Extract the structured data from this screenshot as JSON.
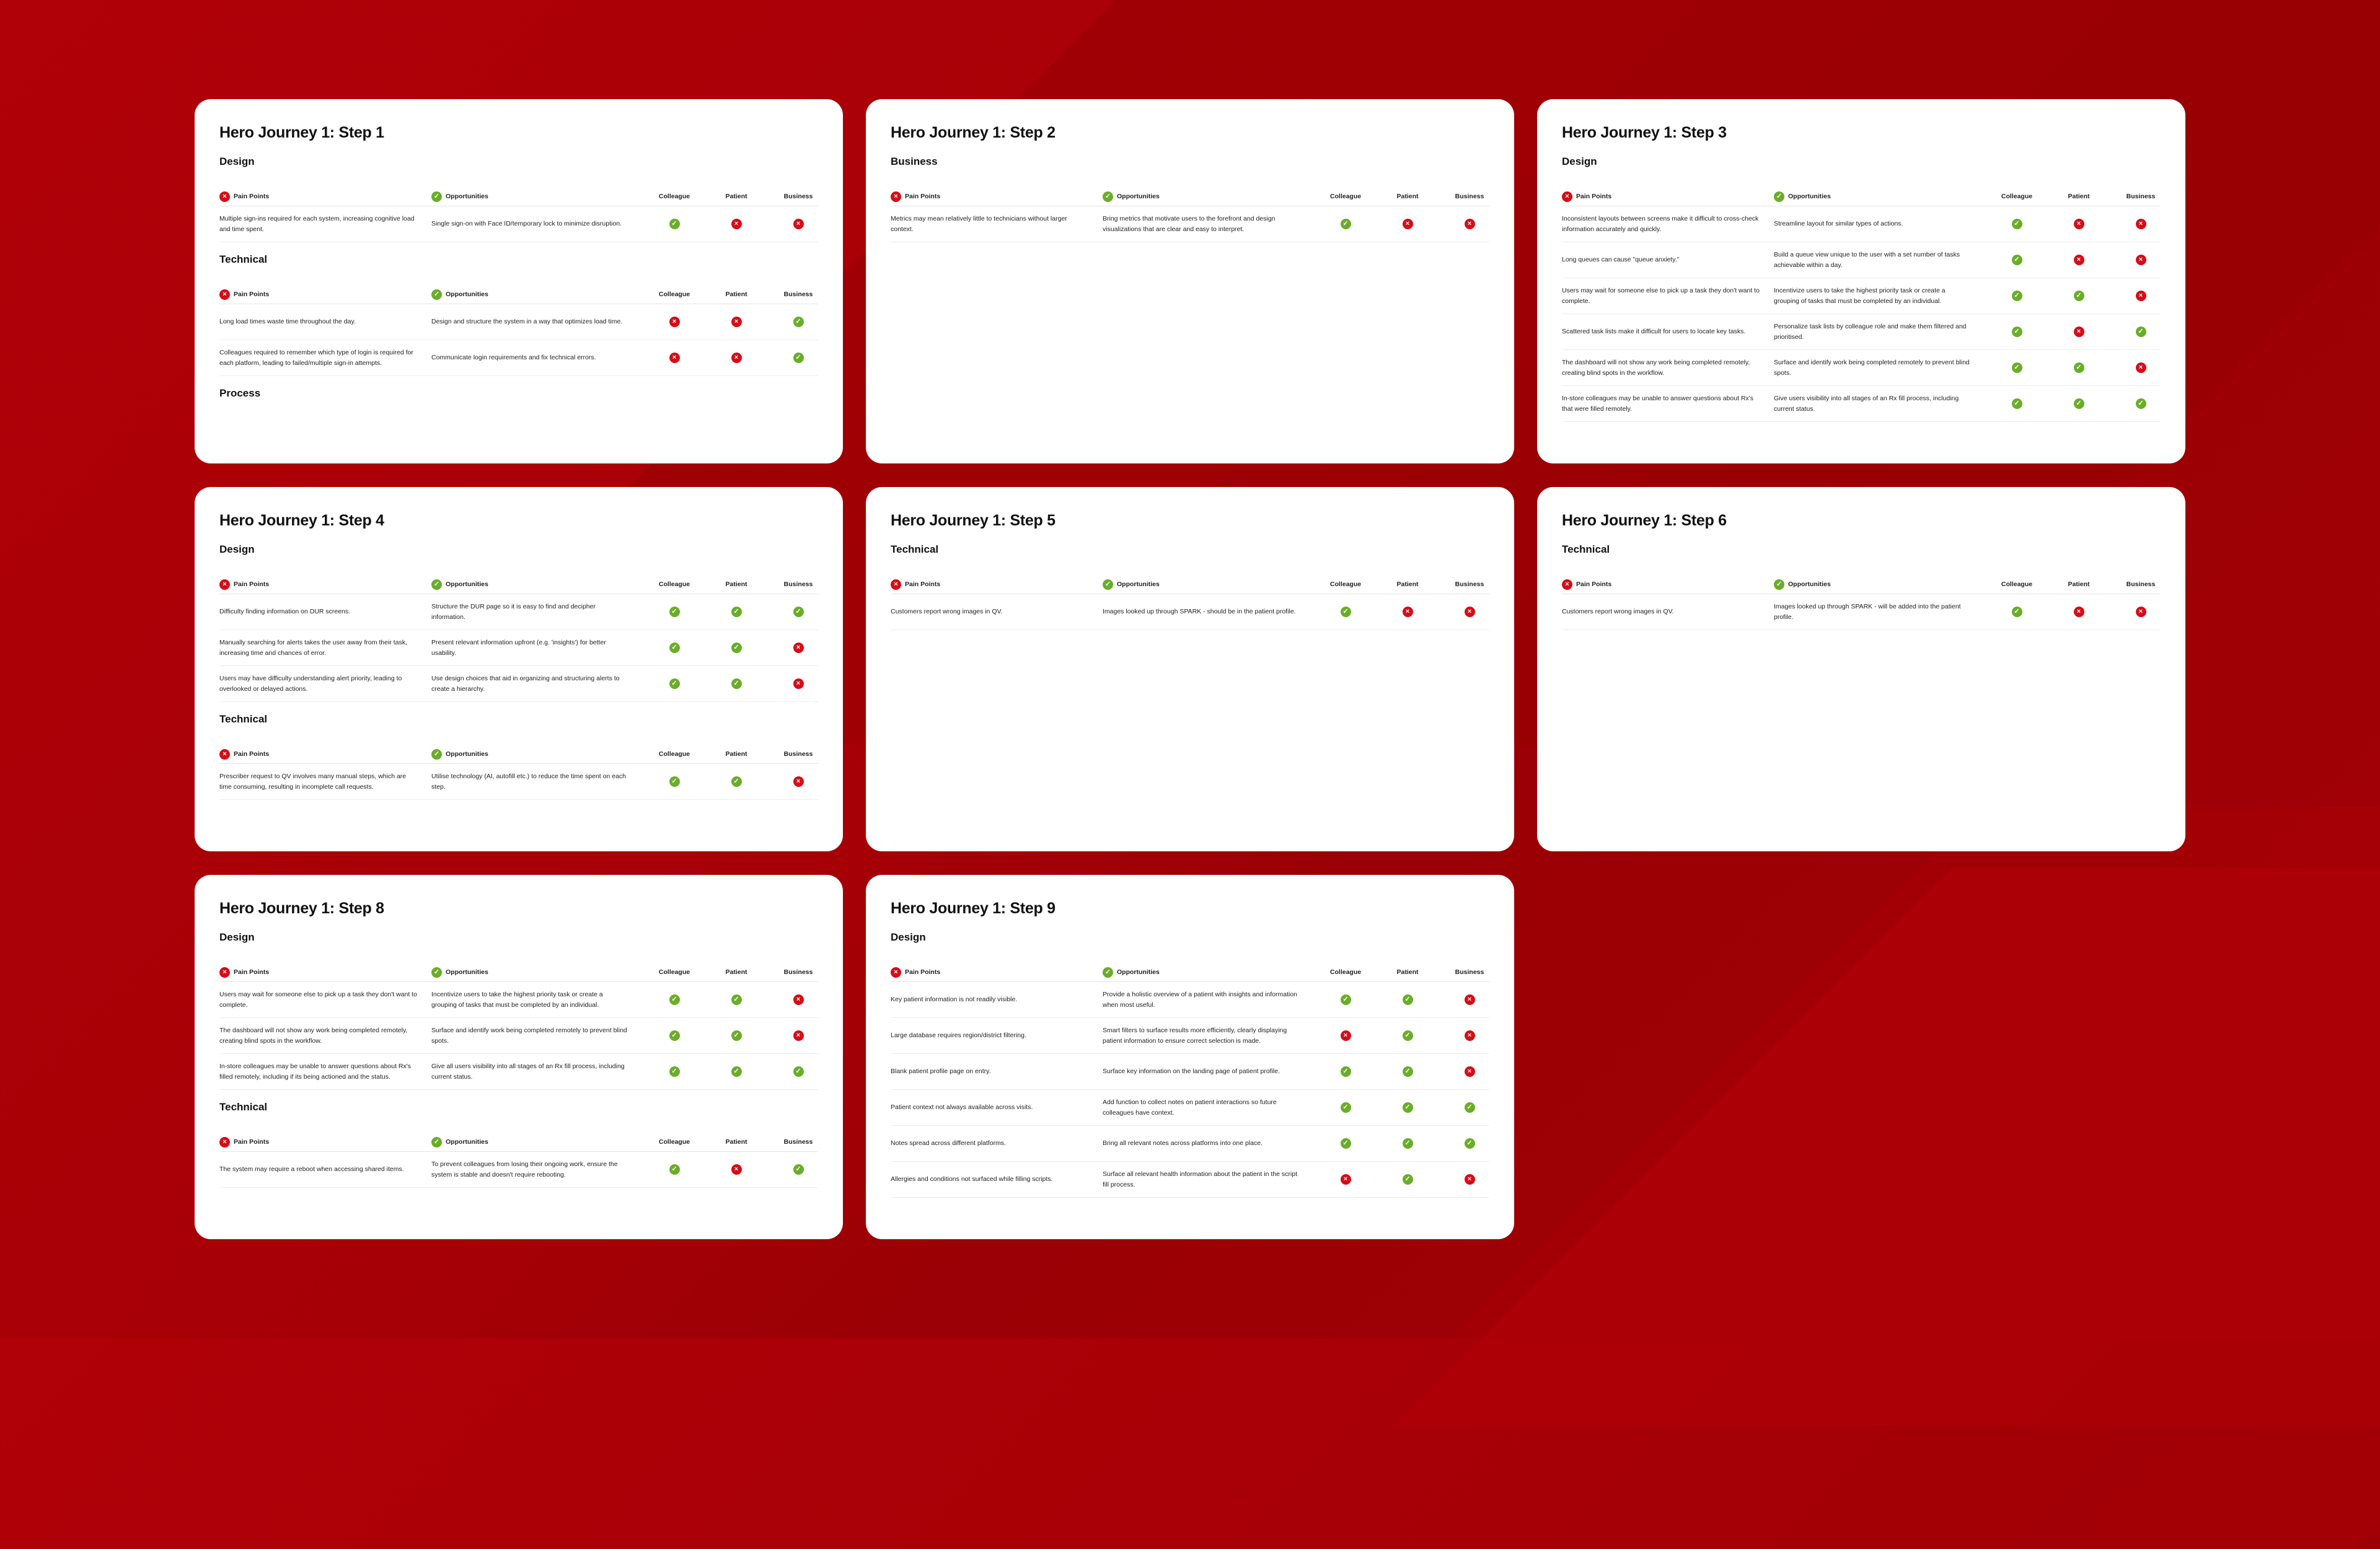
{
  "headers": {
    "pain": "Pain Points",
    "opp": "Opportunities",
    "colleague": "Colleague",
    "patient": "Patient",
    "business": "Business"
  },
  "icons": {
    "pain": "x-circle-icon",
    "opp": "check-circle-icon",
    "yes": "check-icon",
    "no": "x-icon"
  },
  "colors": {
    "background": "#a80006",
    "pain": "#d60d17",
    "opp": "#6aad2a"
  },
  "cards": [
    {
      "title": "Hero Journey 1: Step 1",
      "sections": [
        {
          "title": "Design",
          "rows": [
            {
              "pain": "Multiple sign-ins required for each system, increasing cognitive load and time spent.",
              "opp": "Single sign-on with Face ID/temporary lock to minimize disruption.",
              "colleague": "yes",
              "patient": "no",
              "business": "no"
            }
          ]
        },
        {
          "title": "Technical",
          "rows": [
            {
              "pain": "Long load times waste time throughout the day.",
              "opp": "Design and structure the system in a way that optimizes load time.",
              "colleague": "no",
              "patient": "no",
              "business": "yes"
            },
            {
              "pain": "Colleagues required to remember which type of login is required for each platform, leading to failed/multiple sign-in attempts.",
              "opp": "Communicate login requirements and fix technical errors.",
              "colleague": "no",
              "patient": "no",
              "business": "yes"
            }
          ]
        },
        {
          "title": "Process",
          "rows": []
        }
      ]
    },
    {
      "title": "Hero Journey 1: Step 2",
      "sections": [
        {
          "title": "Business",
          "rows": [
            {
              "pain": "Metrics may mean relatively little to technicians without larger context.",
              "opp": "Bring metrics that motivate users to the forefront and design visualizations that are clear and easy to interpret.",
              "colleague": "yes",
              "patient": "no",
              "business": "no"
            }
          ]
        }
      ]
    },
    {
      "title": "Hero Journey 1: Step 3",
      "sections": [
        {
          "title": "Design",
          "rows": [
            {
              "pain": "Inconsistent layouts between screens make it difficult to cross-check information accurately and quickly.",
              "opp": "Streamline layout for similar types of actions.",
              "colleague": "yes",
              "patient": "no",
              "business": "no"
            },
            {
              "pain": "Long queues can cause \"queue anxiety.\"",
              "opp": "Build a queue view unique to the user with a set number of tasks achievable within a day.",
              "colleague": "yes",
              "patient": "no",
              "business": "no"
            },
            {
              "pain": "Users may wait for someone else to pick up a task they don't want to complete.",
              "opp": "Incentivize users to take the highest priority task or create a grouping of tasks that must be completed by an individual.",
              "colleague": "yes",
              "patient": "yes",
              "business": "no"
            },
            {
              "pain": "Scattered task lists make it difficult for users to locate key tasks.",
              "opp": "Personalize task lists by colleague role and make them filtered and prioritised.",
              "colleague": "yes",
              "patient": "no",
              "business": "yes"
            },
            {
              "pain": "The dashboard will not show any work being completed remotely, creating blind spots in the workflow.",
              "opp": "Surface and identify work being completed remotely to prevent blind spots.",
              "colleague": "yes",
              "patient": "yes",
              "business": "no"
            },
            {
              "pain": "In-store colleagues may be unable to answer questions about Rx's that were filled remotely.",
              "opp": "Give users visibility into all stages of an Rx fill process, including current status.",
              "colleague": "yes",
              "patient": "yes",
              "business": "yes"
            }
          ]
        }
      ]
    },
    {
      "title": "Hero Journey 1: Step 4",
      "sections": [
        {
          "title": "Design",
          "rows": [
            {
              "pain": "Difficulty finding information on DUR screens.",
              "opp": "Structure the DUR page so it is easy to find and decipher information.",
              "colleague": "yes",
              "patient": "yes",
              "business": "yes"
            },
            {
              "pain": "Manually searching for alerts takes the user away from their task, increasing time and chances of error.",
              "opp": "Present relevant information upfront (e.g. 'insights') for better usability.",
              "colleague": "yes",
              "patient": "yes",
              "business": "no"
            },
            {
              "pain": "Users may have difficulty understanding alert priority, leading to overlooked or delayed actions.",
              "opp": "Use design choices that aid in organizing and structuring alerts to create a hierarchy.",
              "colleague": "yes",
              "patient": "yes",
              "business": "no"
            }
          ]
        },
        {
          "title": "Technical",
          "rows": [
            {
              "pain": "Prescriber request to QV involves many manual steps, which are time consuming, resulting in incomplete call requests.",
              "opp": "Utilise technology (AI, autofill etc.) to reduce the time spent on each step.",
              "colleague": "yes",
              "patient": "yes",
              "business": "no"
            }
          ]
        }
      ]
    },
    {
      "title": "Hero Journey 1: Step 5",
      "sections": [
        {
          "title": "Technical",
          "rows": [
            {
              "pain": "Customers report wrong images in QV.",
              "opp": "Images looked up through SPARK - should be in the patient profile.",
              "colleague": "yes",
              "patient": "no",
              "business": "no"
            }
          ]
        }
      ]
    },
    {
      "title": "Hero Journey 1: Step 6",
      "sections": [
        {
          "title": "Technical",
          "rows": [
            {
              "pain": "Customers report wrong images in QV.",
              "opp": "Images looked up through SPARK - will be added into the patient profile.",
              "colleague": "yes",
              "patient": "no",
              "business": "no"
            }
          ]
        }
      ]
    },
    {
      "title": "Hero Journey 1: Step 8",
      "sections": [
        {
          "title": "Design",
          "rows": [
            {
              "pain": "Users may wait for someone else to pick up a task they don't want to complete.",
              "opp": "Incentivize users to take the highest priority task or create a grouping of tasks that must be completed by an individual.",
              "colleague": "yes",
              "patient": "yes",
              "business": "no"
            },
            {
              "pain": "The dashboard will not show any work being completed remotely, creating blind spots in the workflow.",
              "opp": "Surface and identify work being completed remotely to prevent blind spots.",
              "colleague": "yes",
              "patient": "yes",
              "business": "no"
            },
            {
              "pain": "In-store colleagues may be unable to answer questions about Rx's filled remotely, including if its being actioned and the status.",
              "opp": "Give all users visibility into all stages of an Rx fill process, including current status.",
              "colleague": "yes",
              "patient": "yes",
              "business": "yes"
            }
          ]
        },
        {
          "title": "Technical",
          "rows": [
            {
              "pain": "The system may require a reboot when accessing shared items.",
              "opp": "To prevent colleagues from losing their ongoing work, ensure the system is stable and doesn't require rebooting.",
              "colleague": "yes",
              "patient": "no",
              "business": "yes"
            }
          ]
        }
      ]
    },
    {
      "title": "Hero Journey 1: Step 9",
      "sections": [
        {
          "title": "Design",
          "rows": [
            {
              "pain": "Key patient information is not readily visible.",
              "opp": "Provide a holistic overview of a patient with insights and information when most useful.",
              "colleague": "yes",
              "patient": "yes",
              "business": "no"
            },
            {
              "pain": "Large database requires region/district filtering.",
              "opp": "Smart filters to surface results more efficiently, clearly displaying patient information to ensure correct selection is made.",
              "colleague": "no",
              "patient": "yes",
              "business": "no"
            },
            {
              "pain": "Blank patient profile page on entry.",
              "opp": "Surface key information on the landing page of patient profile.",
              "colleague": "yes",
              "patient": "yes",
              "business": "no"
            },
            {
              "pain": "Patient context not always available across visits.",
              "opp": "Add function to collect notes on patient interactions so future colleagues have context.",
              "colleague": "yes",
              "patient": "yes",
              "business": "yes"
            },
            {
              "pain": "Notes spread across different platforms.",
              "opp": "Bring all relevant notes across platforms into one place.",
              "colleague": "yes",
              "patient": "yes",
              "business": "yes"
            },
            {
              "pain": "Allergies and conditions not surfaced while filling scripts.",
              "opp": "Surface all relevant health information about the patient in the script fill process.",
              "colleague": "no",
              "patient": "yes",
              "business": "no"
            }
          ]
        }
      ]
    }
  ]
}
